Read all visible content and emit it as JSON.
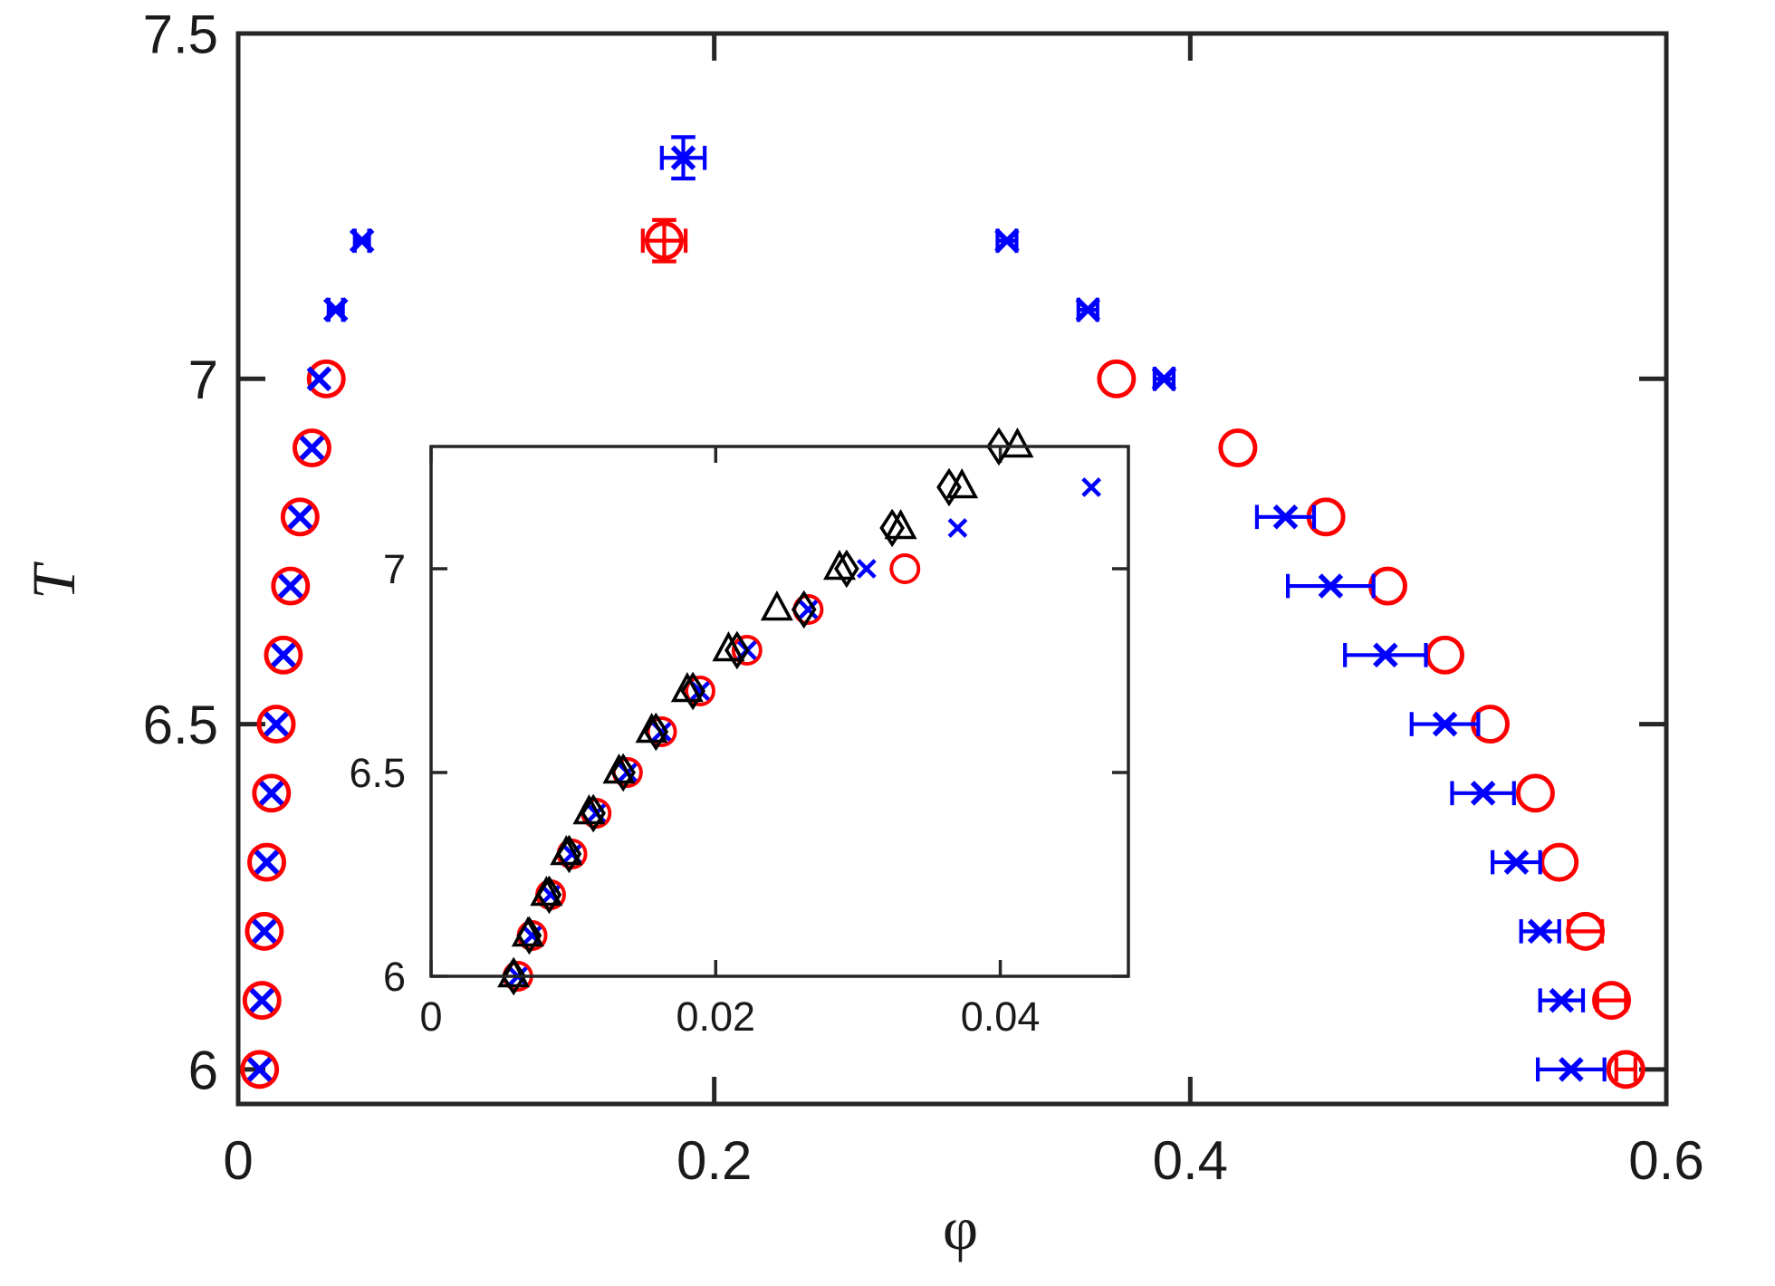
{
  "chart_data": [
    {
      "type": "scatter",
      "name": "main",
      "xlabel": "φ",
      "ylabel": "T",
      "xlim": [
        0,
        0.6
      ],
      "ylim": [
        5.95,
        7.5
      ],
      "xticks": [
        0,
        0.2,
        0.4,
        0.6
      ],
      "xtick_labels": [
        "0",
        "0.2",
        "0.4",
        "0.6"
      ],
      "yticks": [
        6,
        6.5,
        7,
        7.5
      ],
      "ytick_labels": [
        "6",
        "6.5",
        "7",
        "7.5"
      ],
      "series": [
        {
          "name": "red circles",
          "marker": "circle",
          "color": "#ff0000",
          "points": [
            {
              "x": 0.009,
              "y": 6.0
            },
            {
              "x": 0.01,
              "y": 6.1
            },
            {
              "x": 0.011,
              "y": 6.2
            },
            {
              "x": 0.012,
              "y": 6.3
            },
            {
              "x": 0.014,
              "y": 6.4
            },
            {
              "x": 0.016,
              "y": 6.5
            },
            {
              "x": 0.019,
              "y": 6.6
            },
            {
              "x": 0.022,
              "y": 6.7
            },
            {
              "x": 0.026,
              "y": 6.8
            },
            {
              "x": 0.031,
              "y": 6.9
            },
            {
              "x": 0.037,
              "y": 7.0
            },
            {
              "x": 0.179,
              "y": 7.2,
              "xerr": 0.009,
              "yerr": 0.03
            },
            {
              "x": 0.369,
              "y": 7.0
            },
            {
              "x": 0.42,
              "y": 6.9
            },
            {
              "x": 0.457,
              "y": 6.8
            },
            {
              "x": 0.483,
              "y": 6.7
            },
            {
              "x": 0.507,
              "y": 6.6
            },
            {
              "x": 0.526,
              "y": 6.5
            },
            {
              "x": 0.545,
              "y": 6.4
            },
            {
              "x": 0.555,
              "y": 6.3
            },
            {
              "x": 0.566,
              "y": 6.2,
              "xerr": 0.007
            },
            {
              "x": 0.577,
              "y": 6.1,
              "xerr": 0.006
            },
            {
              "x": 0.583,
              "y": 6.0,
              "xerr": 0.004
            }
          ]
        },
        {
          "name": "blue crosses",
          "marker": "x",
          "color": "#0000ff",
          "points": [
            {
              "x": 0.009,
              "y": 6.0
            },
            {
              "x": 0.01,
              "y": 6.1
            },
            {
              "x": 0.011,
              "y": 6.2
            },
            {
              "x": 0.012,
              "y": 6.3
            },
            {
              "x": 0.014,
              "y": 6.4
            },
            {
              "x": 0.016,
              "y": 6.5
            },
            {
              "x": 0.019,
              "y": 6.6
            },
            {
              "x": 0.022,
              "y": 6.7
            },
            {
              "x": 0.026,
              "y": 6.8
            },
            {
              "x": 0.031,
              "y": 6.9
            },
            {
              "x": 0.034,
              "y": 7.0
            },
            {
              "x": 0.041,
              "y": 7.1,
              "xerr": 0.003
            },
            {
              "x": 0.052,
              "y": 7.2,
              "xerr": 0.003
            },
            {
              "x": 0.187,
              "y": 7.32,
              "xerr": 0.009,
              "yerr": 0.03
            },
            {
              "x": 0.323,
              "y": 7.2,
              "xerr": 0.004
            },
            {
              "x": 0.357,
              "y": 7.1,
              "xerr": 0.004
            },
            {
              "x": 0.389,
              "y": 7.0,
              "xerr": 0.004
            },
            {
              "x": 0.44,
              "y": 6.8,
              "xerr": 0.012
            },
            {
              "x": 0.459,
              "y": 6.7,
              "xerr": 0.018
            },
            {
              "x": 0.482,
              "y": 6.6,
              "xerr": 0.017
            },
            {
              "x": 0.507,
              "y": 6.5,
              "xerr": 0.014
            },
            {
              "x": 0.523,
              "y": 6.4,
              "xerr": 0.013
            },
            {
              "x": 0.537,
              "y": 6.3,
              "xerr": 0.01
            },
            {
              "x": 0.547,
              "y": 6.2,
              "xerr": 0.008
            },
            {
              "x": 0.556,
              "y": 6.1,
              "xerr": 0.009
            },
            {
              "x": 0.56,
              "y": 6.0,
              "xerr": 0.014
            }
          ]
        }
      ]
    },
    {
      "type": "scatter",
      "name": "inset",
      "xlabel": "",
      "ylabel": "",
      "xlim": [
        0,
        0.049
      ],
      "ylim": [
        6.0,
        7.3
      ],
      "xticks": [
        0,
        0.02,
        0.04
      ],
      "xtick_labels": [
        "0",
        "0.02",
        "0.04"
      ],
      "yticks": [
        6,
        6.5,
        7
      ],
      "ytick_labels": [
        "6",
        "6.5",
        "7"
      ],
      "series": [
        {
          "name": "red circles",
          "marker": "circle",
          "color": "#ff0000",
          "points": [
            {
              "x": 0.0061,
              "y": 6.0
            },
            {
              "x": 0.0071,
              "y": 6.1
            },
            {
              "x": 0.0084,
              "y": 6.2
            },
            {
              "x": 0.0099,
              "y": 6.3
            },
            {
              "x": 0.0116,
              "y": 6.4
            },
            {
              "x": 0.0138,
              "y": 6.5
            },
            {
              "x": 0.0162,
              "y": 6.6
            },
            {
              "x": 0.0189,
              "y": 6.7
            },
            {
              "x": 0.0222,
              "y": 6.8
            },
            {
              "x": 0.0265,
              "y": 6.9
            },
            {
              "x": 0.0333,
              "y": 7.0
            }
          ]
        },
        {
          "name": "blue crosses",
          "marker": "x",
          "color": "#0000ff",
          "points": [
            {
              "x": 0.0061,
              "y": 6.0
            },
            {
              "x": 0.0071,
              "y": 6.1
            },
            {
              "x": 0.0084,
              "y": 6.2
            },
            {
              "x": 0.0099,
              "y": 6.3
            },
            {
              "x": 0.0116,
              "y": 6.4
            },
            {
              "x": 0.0138,
              "y": 6.5
            },
            {
              "x": 0.0162,
              "y": 6.6
            },
            {
              "x": 0.0189,
              "y": 6.7
            },
            {
              "x": 0.0222,
              "y": 6.8
            },
            {
              "x": 0.0265,
              "y": 6.9
            },
            {
              "x": 0.0306,
              "y": 7.0
            },
            {
              "x": 0.037,
              "y": 7.1
            },
            {
              "x": 0.0464,
              "y": 7.2
            }
          ]
        },
        {
          "name": "black diamonds",
          "marker": "diamond",
          "color": "#000000",
          "points": [
            {
              "x": 0.0058,
              "y": 6.0
            },
            {
              "x": 0.0069,
              "y": 6.1
            },
            {
              "x": 0.0083,
              "y": 6.2
            },
            {
              "x": 0.0097,
              "y": 6.3
            },
            {
              "x": 0.0114,
              "y": 6.4
            },
            {
              "x": 0.0135,
              "y": 6.5
            },
            {
              "x": 0.0158,
              "y": 6.6
            },
            {
              "x": 0.0184,
              "y": 6.7
            },
            {
              "x": 0.0215,
              "y": 6.8
            },
            {
              "x": 0.0262,
              "y": 6.9
            },
            {
              "x": 0.0292,
              "y": 7.0
            },
            {
              "x": 0.0324,
              "y": 7.1
            },
            {
              "x": 0.0364,
              "y": 7.2
            },
            {
              "x": 0.0399,
              "y": 7.3
            }
          ]
        },
        {
          "name": "black triangles",
          "marker": "triangle",
          "color": "#000000",
          "points": [
            {
              "x": 0.0058,
              "y": 6.0
            },
            {
              "x": 0.0068,
              "y": 6.1
            },
            {
              "x": 0.0081,
              "y": 6.2
            },
            {
              "x": 0.0095,
              "y": 6.3
            },
            {
              "x": 0.0111,
              "y": 6.4
            },
            {
              "x": 0.0132,
              "y": 6.5
            },
            {
              "x": 0.0155,
              "y": 6.6
            },
            {
              "x": 0.018,
              "y": 6.7
            },
            {
              "x": 0.0209,
              "y": 6.8
            },
            {
              "x": 0.0243,
              "y": 6.9
            },
            {
              "x": 0.0287,
              "y": 7.0
            },
            {
              "x": 0.033,
              "y": 7.1
            },
            {
              "x": 0.0373,
              "y": 7.2
            },
            {
              "x": 0.0412,
              "y": 7.3
            }
          ]
        }
      ]
    }
  ]
}
